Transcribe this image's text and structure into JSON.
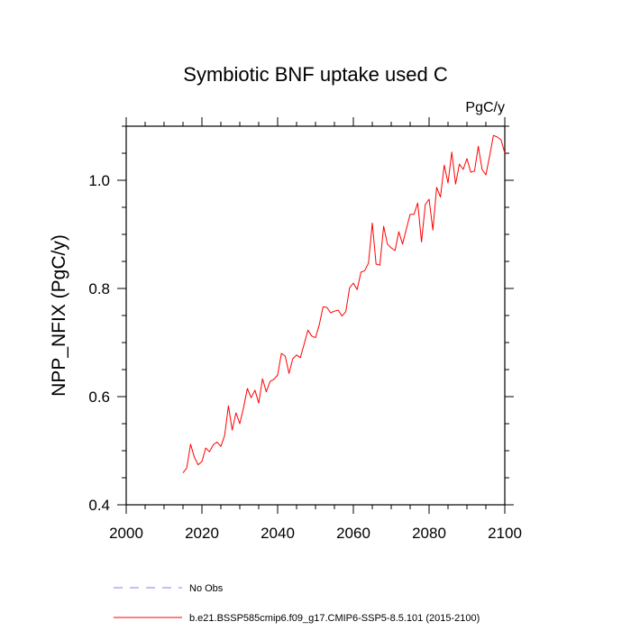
{
  "chart_data": {
    "type": "line",
    "title": "Symbiotic BNF uptake used C",
    "units_label": "PgC/y",
    "ylabel": "NPP_NFIX  (PgC/y)",
    "xlabel": "",
    "xlim": [
      2000,
      2100
    ],
    "ylim": [
      0.4,
      1.1
    ],
    "x_ticks": [
      2000,
      2020,
      2040,
      2060,
      2080,
      2100
    ],
    "y_ticks": [
      0.4,
      0.6,
      0.8,
      1.0
    ],
    "y_tick_labels": [
      "0.4",
      "0.6",
      "0.8",
      "1.0"
    ],
    "legend": [
      {
        "name": "No Obs",
        "color": "#8080ff",
        "style": "dashed"
      },
      {
        "name": "b.e21.BSSP585cmip6.f09_g17.CMIP6-SSP5-8.5.101 (2015-2100)",
        "color": "#ff0000",
        "style": "solid"
      }
    ],
    "series": [
      {
        "name": "b.e21.BSSP585cmip6.f09_g17.CMIP6-SSP5-8.5.101 (2015-2100)",
        "color": "#ff0000",
        "x": [
          2015,
          2016,
          2017,
          2018,
          2019,
          2020,
          2021,
          2022,
          2023,
          2024,
          2025,
          2026,
          2027,
          2028,
          2029,
          2030,
          2031,
          2032,
          2033,
          2034,
          2035,
          2036,
          2037,
          2038,
          2039,
          2040,
          2041,
          2042,
          2043,
          2044,
          2045,
          2046,
          2047,
          2048,
          2049,
          2050,
          2051,
          2052,
          2053,
          2054,
          2055,
          2056,
          2057,
          2058,
          2059,
          2060,
          2061,
          2062,
          2063,
          2064,
          2065,
          2066,
          2067,
          2068,
          2069,
          2070,
          2071,
          2072,
          2073,
          2074,
          2075,
          2076,
          2077,
          2078,
          2079,
          2080,
          2081,
          2082,
          2083,
          2084,
          2085,
          2086,
          2087,
          2088,
          2089,
          2090,
          2091,
          2092,
          2093,
          2094,
          2095,
          2096,
          2097,
          2098,
          2099,
          2100
        ],
        "values": [
          0.459,
          0.468,
          0.512,
          0.488,
          0.474,
          0.48,
          0.505,
          0.498,
          0.511,
          0.516,
          0.508,
          0.528,
          0.583,
          0.538,
          0.57,
          0.55,
          0.58,
          0.615,
          0.598,
          0.612,
          0.588,
          0.633,
          0.609,
          0.628,
          0.632,
          0.64,
          0.68,
          0.675,
          0.643,
          0.67,
          0.677,
          0.672,
          0.697,
          0.723,
          0.712,
          0.709,
          0.733,
          0.766,
          0.765,
          0.755,
          0.758,
          0.76,
          0.749,
          0.757,
          0.801,
          0.81,
          0.798,
          0.83,
          0.833,
          0.847,
          0.921,
          0.845,
          0.843,
          0.915,
          0.882,
          0.875,
          0.87,
          0.905,
          0.882,
          0.91,
          0.937,
          0.937,
          0.958,
          0.886,
          0.955,
          0.965,
          0.908,
          0.987,
          0.969,
          1.028,
          0.995,
          1.052,
          0.993,
          1.03,
          1.02,
          1.04,
          1.015,
          1.017,
          1.063,
          1.02,
          1.01,
          1.045,
          1.083,
          1.08,
          1.075,
          1.05
        ]
      }
    ]
  }
}
